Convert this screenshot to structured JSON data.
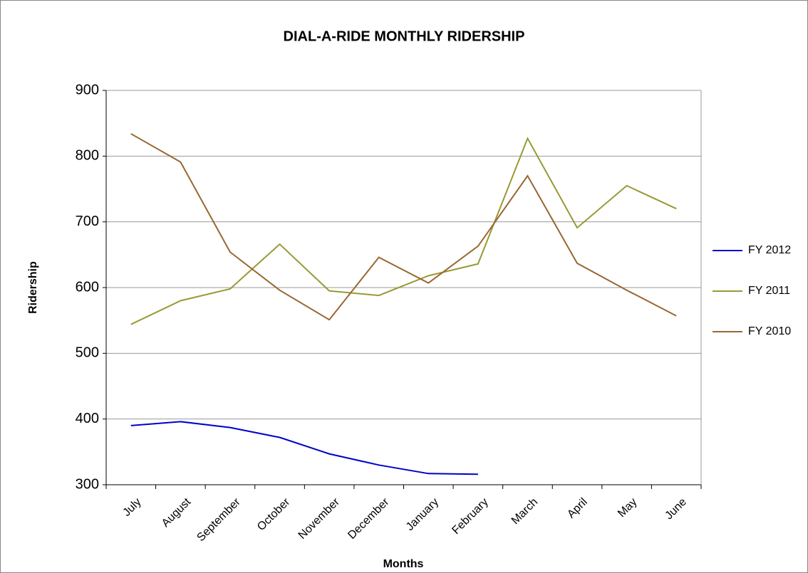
{
  "chart_data": {
    "type": "line",
    "title": "DIAL-A-RIDE MONTHLY RIDERSHIP",
    "x_label": "Months",
    "y_label": "Ridership",
    "categories": [
      "July",
      "August",
      "September",
      "October",
      "November",
      "December",
      "January",
      "February",
      "March",
      "April",
      "May",
      "June"
    ],
    "series": [
      {
        "name": "FY 2012",
        "color": "#0000cc",
        "values": [
          390,
          396,
          387,
          372,
          347,
          330,
          317,
          316,
          null,
          null,
          null,
          null
        ]
      },
      {
        "name": "FY 2011",
        "color": "#999933",
        "values": [
          544,
          580,
          598,
          666,
          595,
          588,
          618,
          636,
          827,
          691,
          755,
          720
        ]
      },
      {
        "name": "FY 2010",
        "color": "#996633",
        "values": [
          834,
          791,
          654,
          596,
          551,
          646,
          607,
          663,
          770,
          637,
          596,
          557
        ]
      }
    ],
    "ylim": [
      300,
      900
    ],
    "yticks": [
      300,
      400,
      500,
      600,
      700,
      800,
      900
    ],
    "grid": true,
    "legend": "right"
  }
}
